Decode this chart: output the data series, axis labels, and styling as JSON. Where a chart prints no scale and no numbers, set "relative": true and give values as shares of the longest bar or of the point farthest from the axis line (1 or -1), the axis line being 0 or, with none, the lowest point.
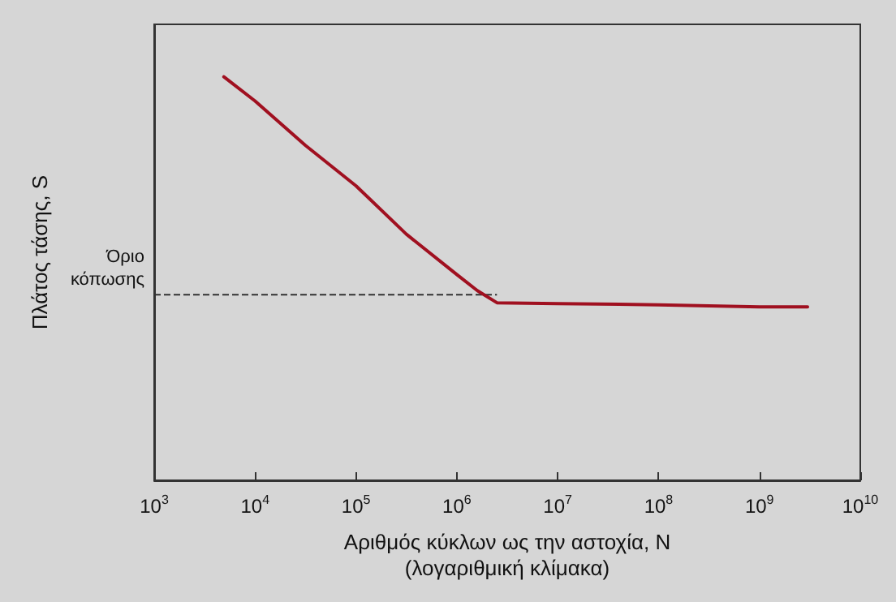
{
  "chart_data": {
    "type": "line",
    "relative": true,
    "xlabel": "Αριθμός κύκλων ως την αστοχία, N\n(λογαριθμική κλίμακα)",
    "ylabel": "Πλάτος τάσης, S",
    "log": "x",
    "x": [
      4900,
      10000,
      31600,
      100000,
      316000,
      1000000,
      1600000,
      2500000,
      10000000,
      100000000,
      1000000000,
      3000000000
    ],
    "series": [
      {
        "color": "#a01020",
        "values": [
          1,
          0.94,
          0.83,
          0.73,
          0.61,
          0.51,
          0.47,
          0.44,
          0.438,
          0.435,
          0.43,
          0.43
        ]
      }
    ],
    "xlim": [
      1000,
      10000000000
    ],
    "xticks": [
      {
        "value": 1000,
        "label": "10$^{3}$"
      },
      {
        "value": 10000,
        "label": "10$^{4}$"
      },
      {
        "value": 100000,
        "label": "10$^{5}$"
      },
      {
        "value": 1000000,
        "label": "10$^{6}$"
      },
      {
        "value": 10000000,
        "label": "10$^{7}$"
      },
      {
        "value": 100000000,
        "label": "10$^{8}$"
      },
      {
        "value": 1000000000,
        "label": "10$^{9}$"
      },
      {
        "value": 10000000000,
        "label": "10$^{10}$"
      }
    ],
    "ref_lines": [
      {
        "axis": "y",
        "value": 0.46,
        "label": "Όριο\nκόπωσης",
        "color": "#333333",
        "line_style": "dashed"
      }
    ],
    "grid": false,
    "marker": "none",
    "line_style": "solid"
  }
}
